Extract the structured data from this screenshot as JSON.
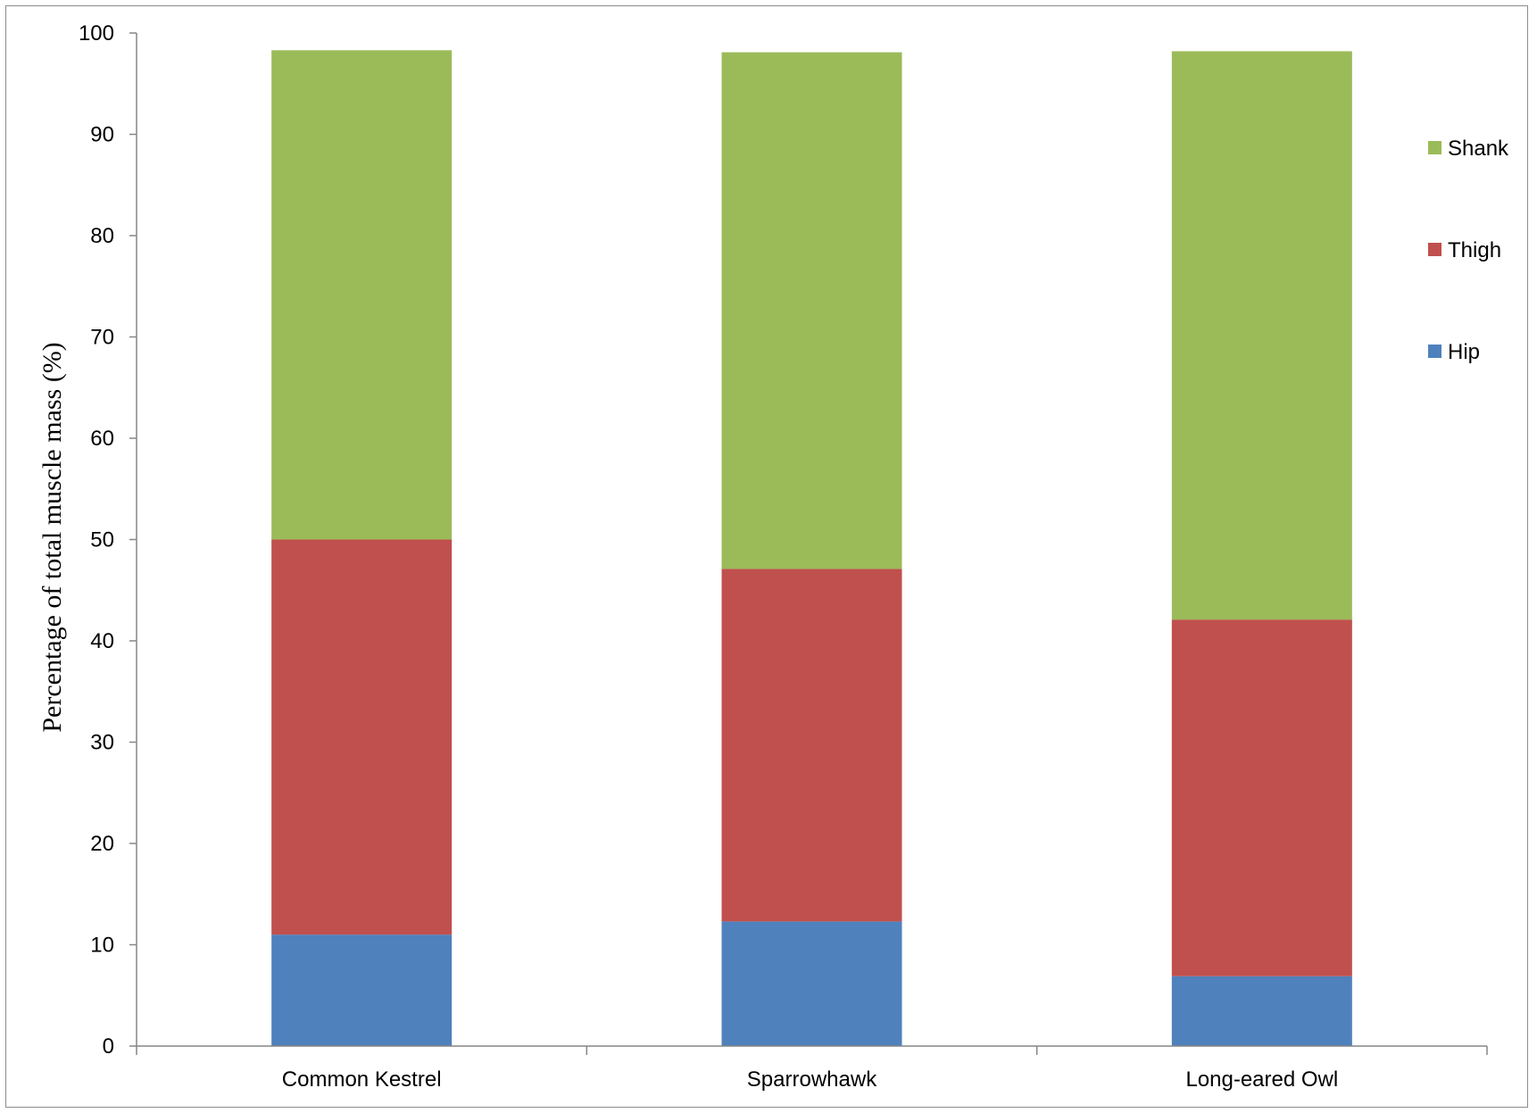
{
  "chart_data": {
    "type": "bar",
    "stacked": true,
    "categories": [
      "Common Kestrel",
      "Sparrowhawk",
      "Long-eared Owl"
    ],
    "series": [
      {
        "name": "Hip",
        "color": "#4f81bd",
        "values": [
          11.0,
          12.3,
          6.9
        ]
      },
      {
        "name": "Thigh",
        "color": "#c0504d",
        "values": [
          39.0,
          34.8,
          35.2
        ]
      },
      {
        "name": "Shank",
        "color": "#9bbb59",
        "values": [
          48.3,
          51.0,
          56.1
        ]
      }
    ],
    "ylabel": "Percentage of total muscle mass (%)",
    "xlabel": "",
    "ylim": [
      0,
      100
    ],
    "yticks": [
      0,
      10,
      20,
      30,
      40,
      50,
      60,
      70,
      80,
      90,
      100
    ],
    "grid": false,
    "legend": {
      "position": "right",
      "order": [
        "Shank",
        "Thigh",
        "Hip"
      ]
    }
  }
}
